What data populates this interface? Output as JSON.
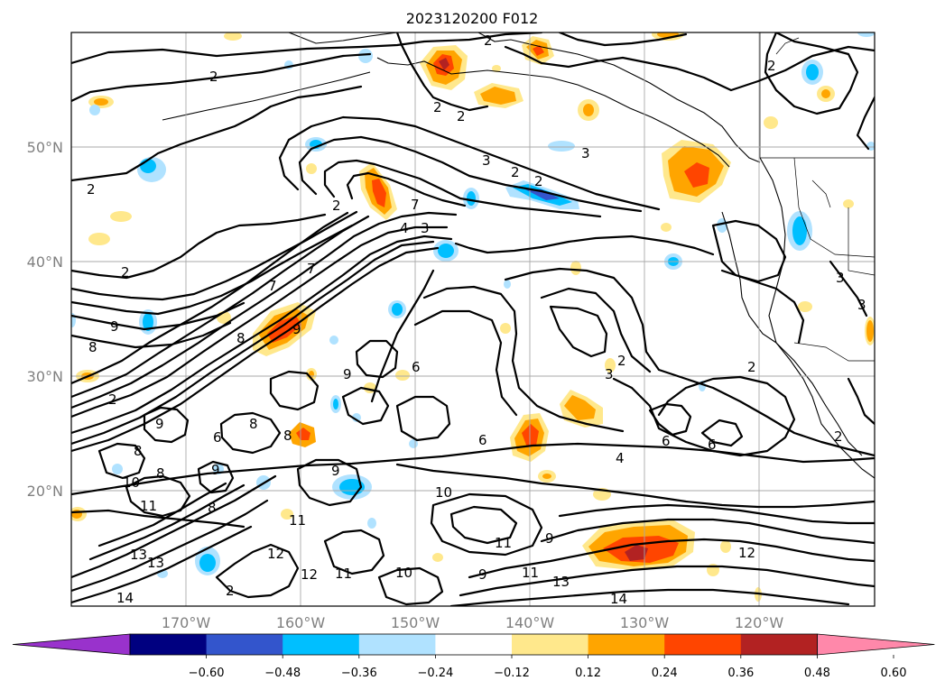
{
  "title": "2023120200 F012",
  "lat_labels": [
    "50°N",
    "40°N",
    "30°N",
    "20°N"
  ],
  "lon_labels": [
    "170°W",
    "160°W",
    "150°W",
    "140°W",
    "130°W",
    "120°W"
  ],
  "colorbar": {
    "extend": "both",
    "colors": [
      "#9932CC",
      "#000080",
      "#3355CC",
      "#00BFFF",
      "#B0E2FF",
      "#FFFFFF",
      "#FFE88C",
      "#FFA500",
      "#FF4500",
      "#B22222",
      "#FF88AA"
    ],
    "tick_labels": [
      "−0.60",
      "−0.48",
      "−0.36",
      "−0.24",
      "−0.12",
      "0.12",
      "0.24",
      "0.36",
      "0.48",
      "0.60"
    ]
  },
  "contour_labels": [
    "2",
    "2",
    "2",
    "2",
    "3",
    "2",
    "2",
    "3",
    "2",
    "2",
    "2",
    "7",
    "4",
    "3",
    "2",
    "7",
    "9",
    "8",
    "7",
    "8",
    "9",
    "6",
    "9",
    "6",
    "8",
    "8",
    "2",
    "3",
    "3",
    "3",
    "2",
    "4",
    "6",
    "6",
    "2",
    "2",
    "9",
    "8",
    "6",
    "9",
    "8",
    "10",
    "9",
    "10",
    "11",
    "11",
    "12",
    "11",
    "12",
    "13",
    "13",
    "14",
    "12",
    "10",
    "9",
    "11",
    "11",
    "13",
    "14",
    "9",
    "8",
    "2"
  ],
  "shading_colors": {
    "positive_light": "#FFE88C",
    "positive_mid": "#FFA500",
    "positive_strong": "#FF4500",
    "positive_max": "#B22222",
    "negative_light": "#B0E2FF",
    "negative_mid": "#00BFFF",
    "negative_strong": "#3355CC"
  }
}
